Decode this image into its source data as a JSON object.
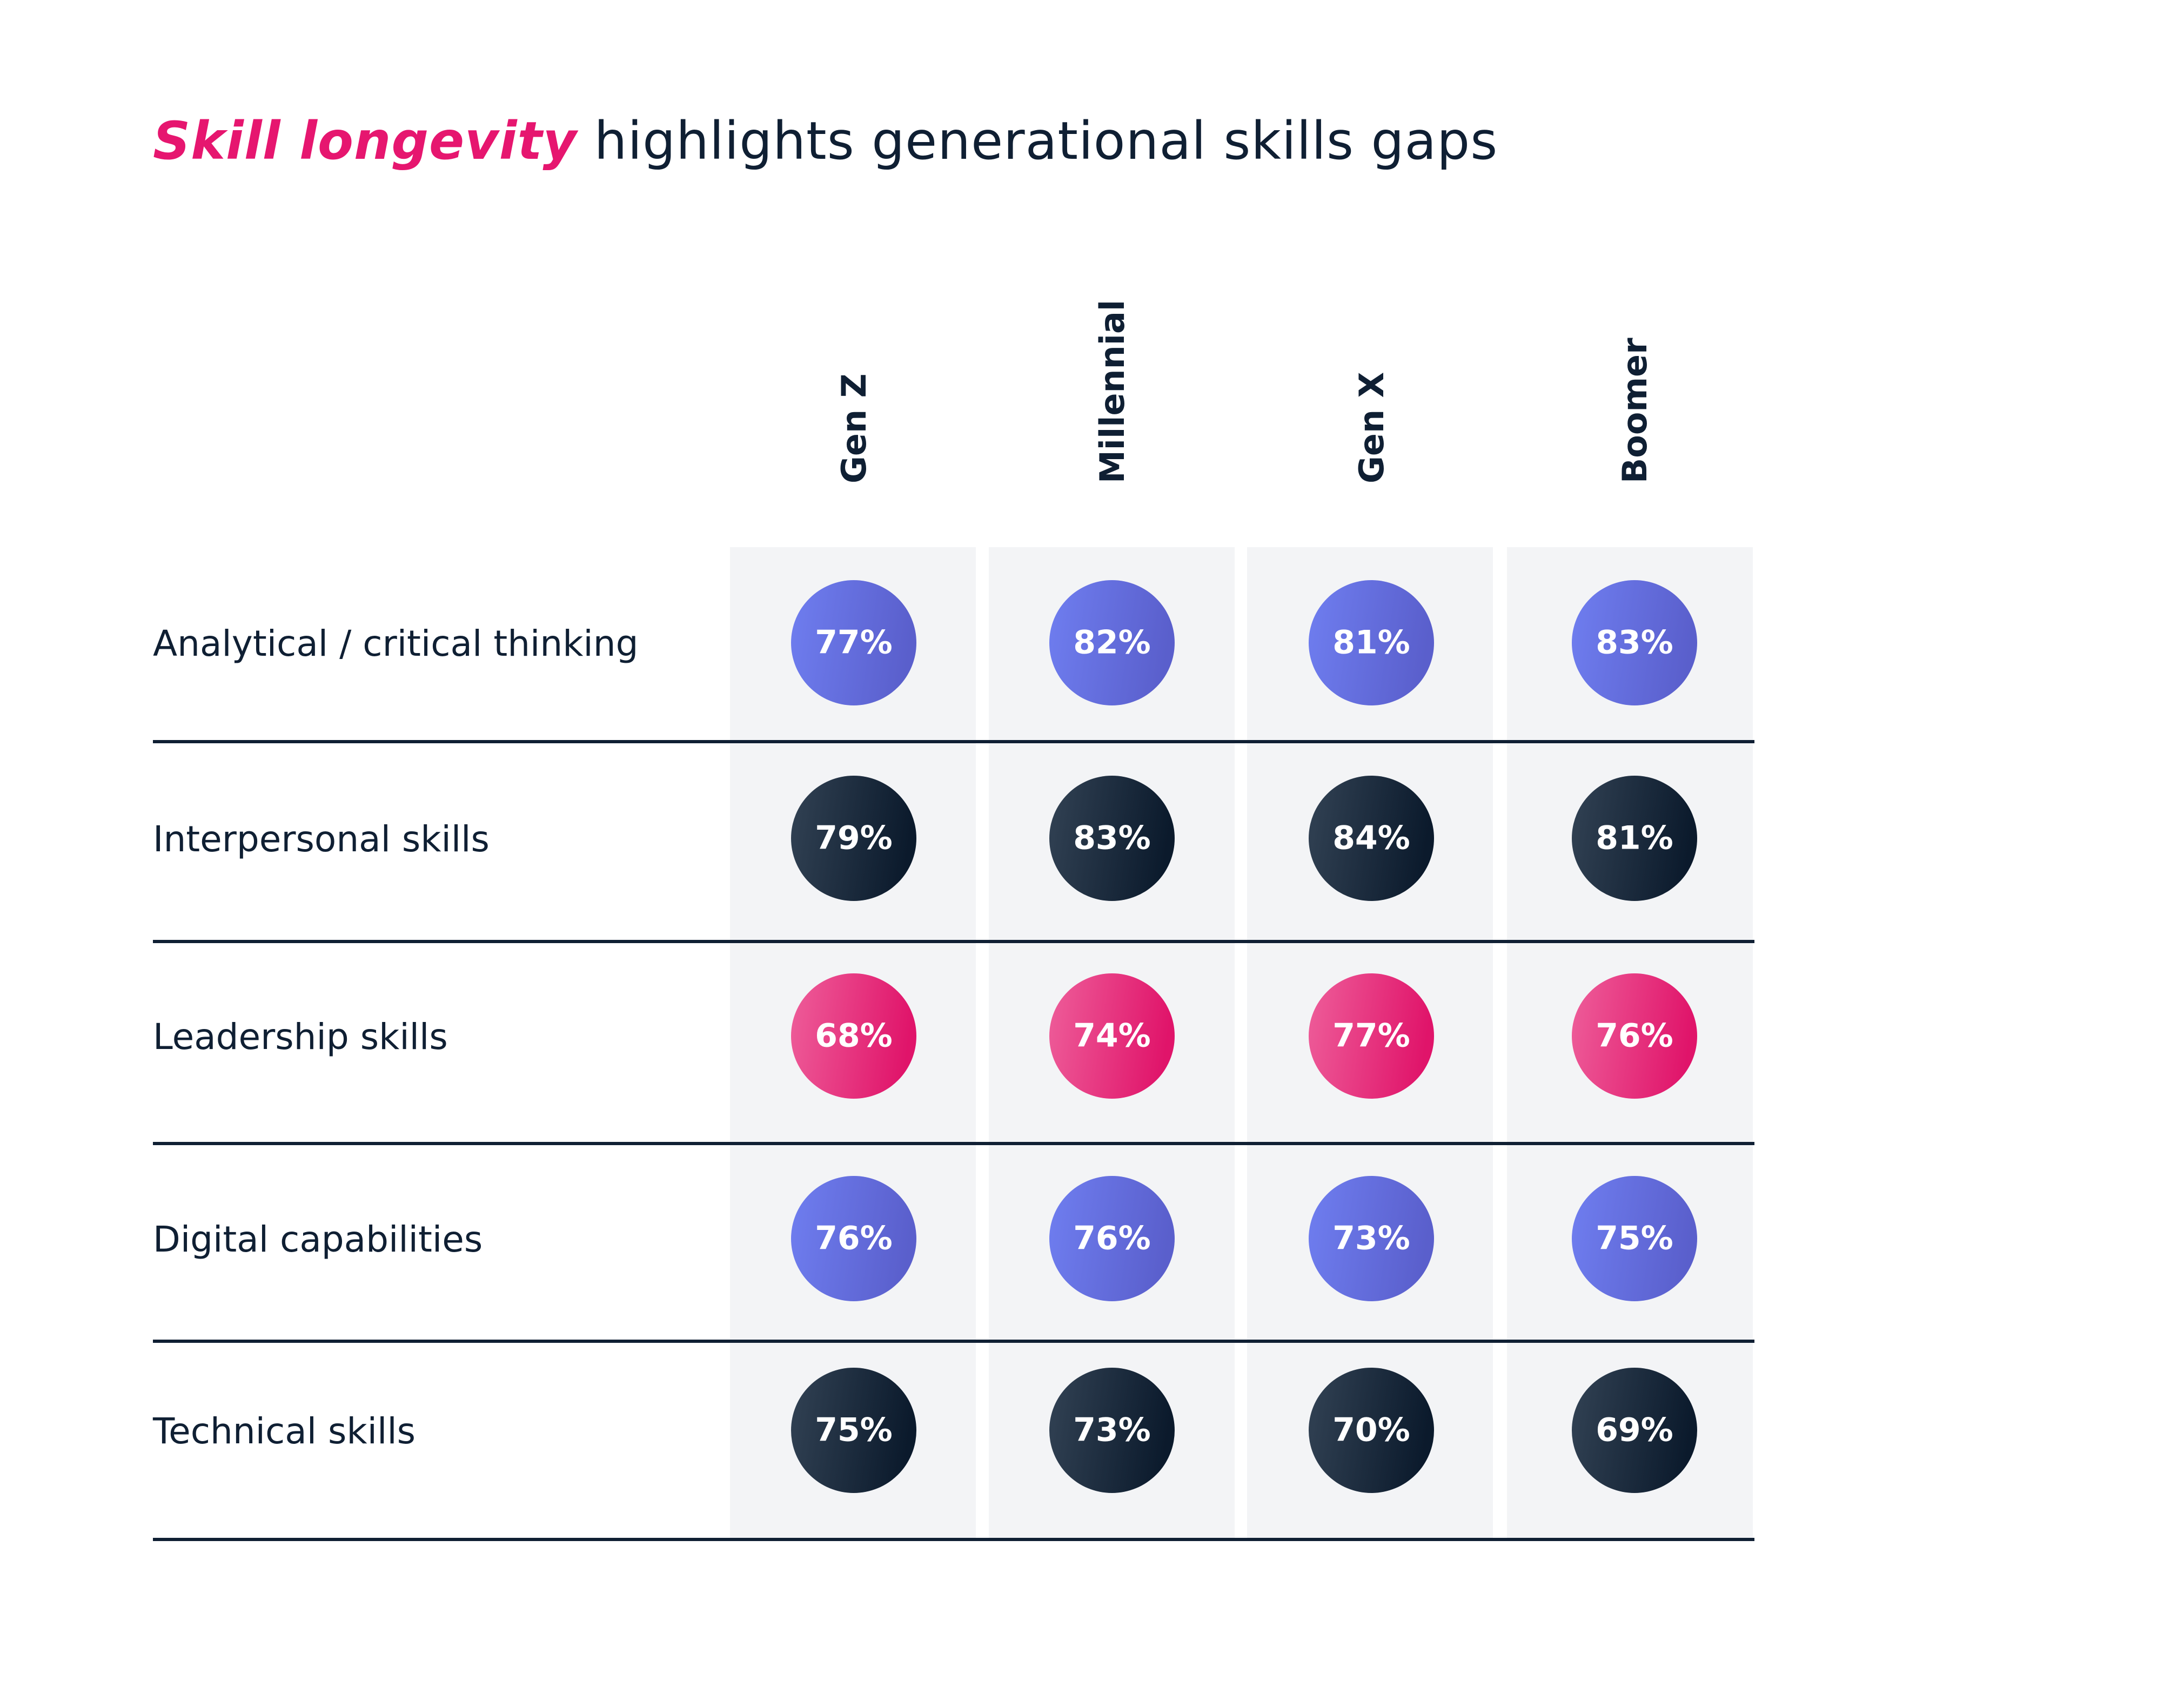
{
  "title": {
    "highlight": "Skill longevity",
    "rest": " highlights generational skills gaps"
  },
  "colors": {
    "accent": "#e6166f",
    "text": "#0f1f33",
    "column_bg": "#f3f4f6",
    "divider": "#0f1f33",
    "skill_colors": {
      "Analytical / critical thinking": [
        "#6f7ef0",
        "#5a5fcc"
      ],
      "Interpersonal skills": [
        "#324254",
        "#0b1a2c"
      ],
      "Leadership skills": [
        "#ee5e9a",
        "#e0146a"
      ],
      "Digital capabilities": [
        "#6f7ef0",
        "#5a5fcc"
      ],
      "Technical skills": [
        "#324254",
        "#0b1a2c"
      ]
    }
  },
  "chart_data": {
    "type": "table",
    "columns": [
      "Gen Z",
      "Millennial",
      "Gen X",
      "Boomer"
    ],
    "rows": [
      {
        "label": "Analytical / critical thinking",
        "values": [
          77,
          82,
          81,
          83
        ]
      },
      {
        "label": "Interpersonal skills",
        "values": [
          79,
          83,
          84,
          81
        ]
      },
      {
        "label": "Leadership skills",
        "values": [
          68,
          74,
          77,
          76
        ]
      },
      {
        "label": "Digital capabilities",
        "values": [
          76,
          76,
          73,
          75
        ]
      },
      {
        "label": "Technical skills",
        "values": [
          75,
          73,
          70,
          69
        ]
      }
    ],
    "value_suffix": "%"
  }
}
